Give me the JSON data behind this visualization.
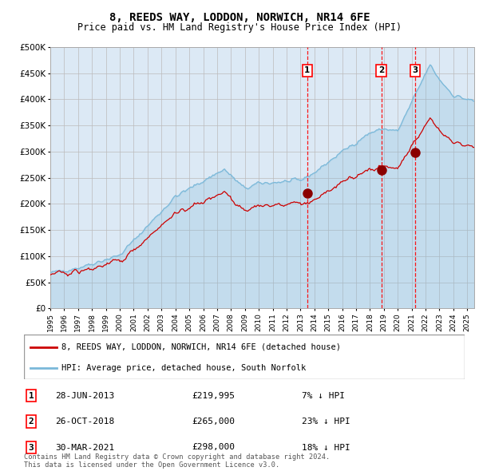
{
  "title": "8, REEDS WAY, LODDON, NORWICH, NR14 6FE",
  "subtitle": "Price paid vs. HM Land Registry's House Price Index (HPI)",
  "background_color": "#dce9f5",
  "hpi_color": "#7ab8d9",
  "price_color": "#cc0000",
  "dot_color": "#8b0000",
  "ylim": [
    0,
    500000
  ],
  "yticks": [
    0,
    50000,
    100000,
    150000,
    200000,
    250000,
    300000,
    350000,
    400000,
    450000,
    500000
  ],
  "sale_events": [
    {
      "date_num": 2013.49,
      "price": 219995,
      "label": "1",
      "date_str": "28-JUN-2013",
      "hpi_pct": "7%"
    },
    {
      "date_num": 2018.82,
      "price": 265000,
      "label": "2",
      "date_str": "26-OCT-2018",
      "hpi_pct": "23%"
    },
    {
      "date_num": 2021.24,
      "price": 298000,
      "label": "3",
      "date_str": "30-MAR-2021",
      "hpi_pct": "18%"
    }
  ],
  "legend_property_label": "8, REEDS WAY, LODDON, NORWICH, NR14 6FE (detached house)",
  "legend_hpi_label": "HPI: Average price, detached house, South Norfolk",
  "footer": "Contains HM Land Registry data © Crown copyright and database right 2024.\nThis data is licensed under the Open Government Licence v3.0.",
  "xmin": 1995,
  "xmax": 2025.5
}
